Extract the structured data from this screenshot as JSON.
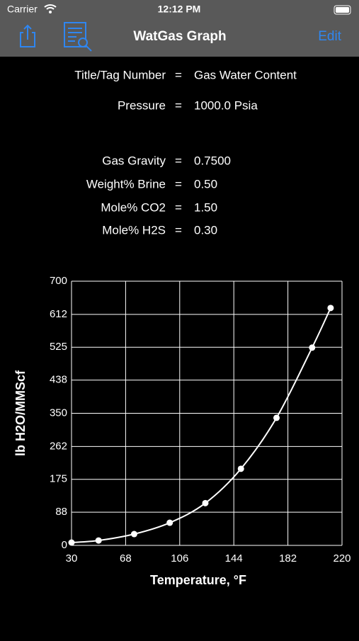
{
  "status": {
    "carrier": "Carrier",
    "time": "12:12 PM"
  },
  "nav": {
    "title": "WatGas Graph",
    "edit": "Edit"
  },
  "separator": "=",
  "info": [
    {
      "label": "Title/Tag Number",
      "value": "Gas Water Content"
    },
    {
      "label": "Pressure",
      "value": "1000.0 Psia"
    },
    {
      "label": "Gas Gravity",
      "value": "0.7500"
    },
    {
      "label": "Weight% Brine",
      "value": "0.50"
    },
    {
      "label": "Mole% CO2",
      "value": "1.50"
    },
    {
      "label": "Mole% H2S",
      "value": "0.30"
    }
  ],
  "chart_data": {
    "type": "line",
    "xlabel": "Temperature, °F",
    "ylabel": "lb H2O/MMScf",
    "x": [
      30,
      49,
      74,
      99,
      124,
      149,
      174,
      199,
      212
    ],
    "values": [
      7.5,
      13,
      30,
      60,
      112,
      203,
      338,
      524,
      629
    ],
    "color": "#ffffff",
    "xlim": [
      30,
      220
    ],
    "xticks": [
      30,
      68,
      106,
      144,
      182,
      220
    ],
    "ylim": [
      0,
      700
    ],
    "yticks": [
      0,
      88,
      175,
      262,
      350,
      438,
      525,
      612,
      700
    ],
    "grid": true
  }
}
